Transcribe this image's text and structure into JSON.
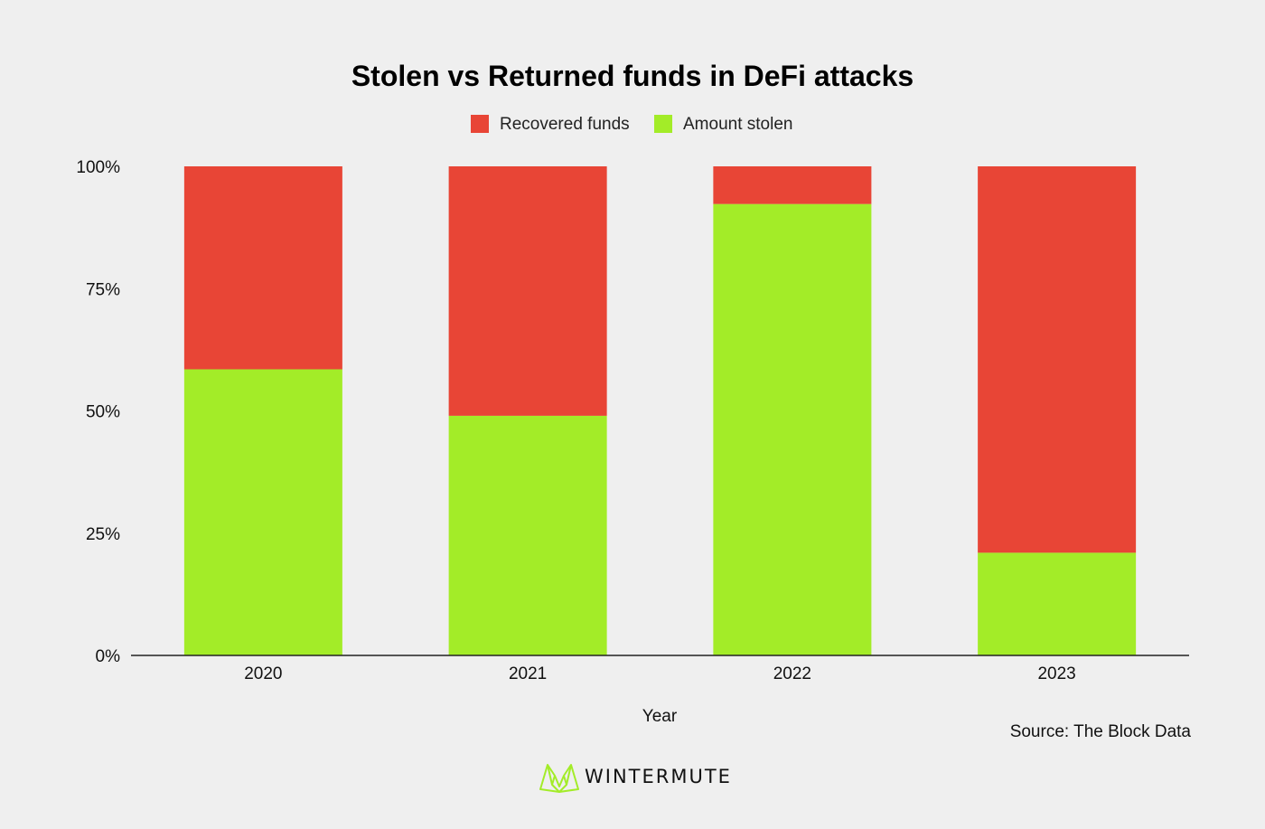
{
  "chart_data": {
    "type": "bar",
    "stacked": true,
    "title": "Stolen vs Returned funds in DeFi attacks",
    "xlabel": "Year",
    "ylabel": "",
    "categories": [
      "2020",
      "2021",
      "2022",
      "2023"
    ],
    "series": [
      {
        "name": "Amount stolen",
        "color": "#a3ec28",
        "values": [
          58.5,
          49,
          92.3,
          21
        ]
      },
      {
        "name": "Recovered funds",
        "color": "#e84536",
        "values": [
          41.5,
          51,
          7.7,
          79
        ]
      }
    ],
    "legend_order": [
      "Recovered funds",
      "Amount stolen"
    ],
    "legend_position": "top-center",
    "ylim": [
      0,
      100
    ],
    "yticks": [
      0,
      25,
      50,
      75,
      100
    ],
    "ytick_labels": [
      "0%",
      "25%",
      "50%",
      "75%",
      "100%"
    ],
    "grid": false
  },
  "source": "Source: The Block Data",
  "brand": {
    "name": "WINTERMUTE",
    "logo": "wintermute-fox-logo",
    "logo_color": "#a3ec28"
  }
}
